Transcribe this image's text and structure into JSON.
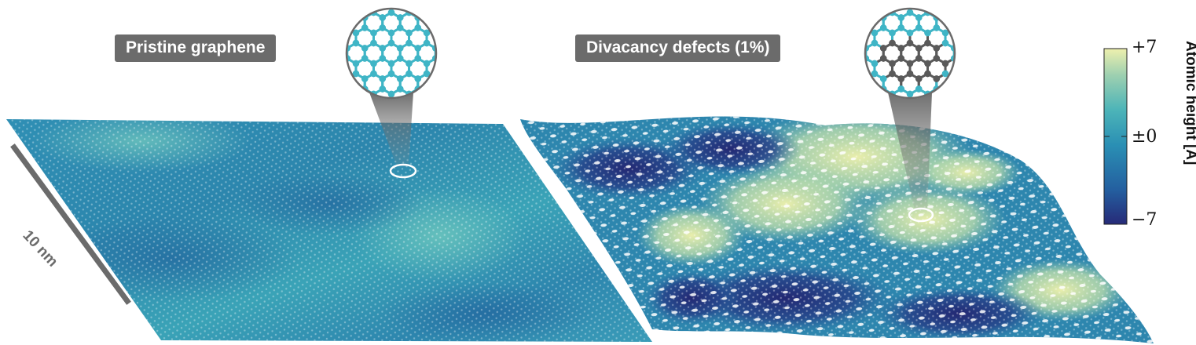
{
  "panels": {
    "left_label": "Pristine graphene",
    "right_label": "Divacancy defects (1%)"
  },
  "scale_bar": {
    "label": "10 nm"
  },
  "colorbar": {
    "title": "Atomic height [Å]",
    "ticks": {
      "max": "+7",
      "mid": "±0",
      "min": "−7"
    },
    "range": [
      -7,
      7
    ],
    "colors": [
      "#262a78",
      "#2460a0",
      "#2a8fb4",
      "#4cb4b8",
      "#9ed0b0",
      "#eef0ae"
    ]
  },
  "colors": {
    "label_bg": "#6b6b6b",
    "carbon_pristine": "#3fb5c6",
    "carbon_defect": "#5a5a5a",
    "highlight_circle": "#ffffff"
  }
}
